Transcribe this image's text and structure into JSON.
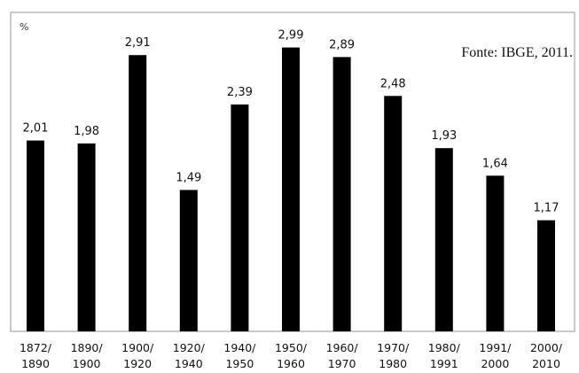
{
  "chart_data": {
    "type": "bar",
    "ylabel": "%",
    "source": "Fonte: IBGE, 2011.",
    "categories": [
      [
        "1872/",
        "1890"
      ],
      [
        "1890/",
        "1900"
      ],
      [
        "1900/",
        "1920"
      ],
      [
        "1920/",
        "1940"
      ],
      [
        "1940/",
        "1950"
      ],
      [
        "1950/",
        "1960"
      ],
      [
        "1960/",
        "1970"
      ],
      [
        "1970/",
        "1980"
      ],
      [
        "1980/",
        "1991"
      ],
      [
        "1991/",
        "2000"
      ],
      [
        "2000/",
        "2010"
      ]
    ],
    "values": [
      2.01,
      1.98,
      2.91,
      1.49,
      2.39,
      2.99,
      2.89,
      2.48,
      1.93,
      1.64,
      1.17
    ],
    "value_labels": [
      "2,01",
      "1,98",
      "2,91",
      "1,49",
      "2,39",
      "2,99",
      "2,89",
      "2,48",
      "1,93",
      "1,64",
      "1,17"
    ],
    "ylim": [
      0,
      3.36
    ],
    "grid": false,
    "bar_color": "#000000",
    "frame_color": "#b8b8b8"
  }
}
